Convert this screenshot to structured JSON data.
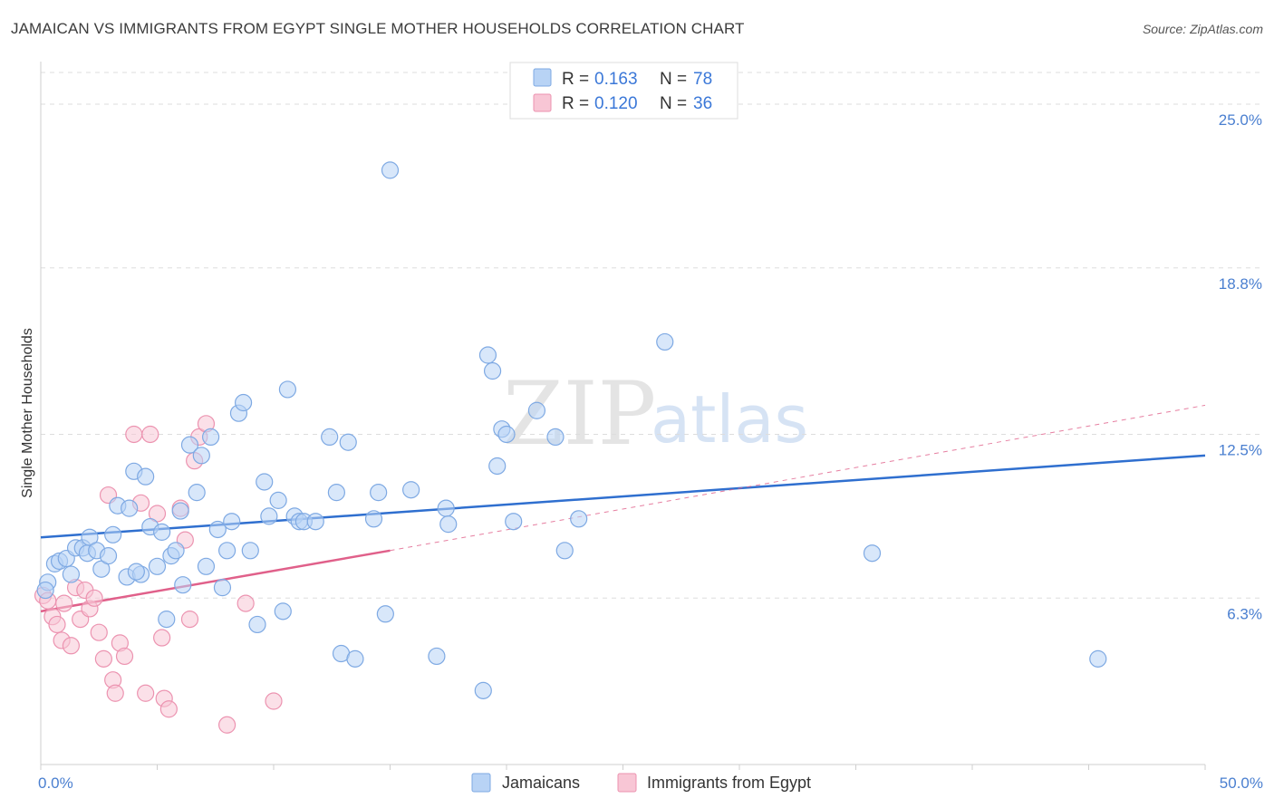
{
  "title": "JAMAICAN VS IMMIGRANTS FROM EGYPT SINGLE MOTHER HOUSEHOLDS CORRELATION CHART",
  "source": "Source: ZipAtlas.com",
  "watermark": {
    "zip": "ZIP",
    "atlas": "atlas"
  },
  "colors": {
    "jamaicans_fill": "#b8d3f5",
    "jamaicans_stroke": "#7ea9e3",
    "jamaicans_line": "#2f6fcf",
    "egypt_fill": "#f8c6d5",
    "egypt_stroke": "#ec93b0",
    "egypt_line": "#e0608a",
    "grid": "#dddddd",
    "tick_text": "#4a7fd0"
  },
  "legend": {
    "rows": [
      {
        "r_label": "R = ",
        "r_value": "0.163",
        "n_label": "N = ",
        "n_value": "78"
      },
      {
        "r_label": "R = ",
        "r_value": "0.120",
        "n_label": "N = ",
        "n_value": "36"
      }
    ]
  },
  "chart_data": {
    "type": "scatter",
    "title": "JAMAICAN VS IMMIGRANTS FROM EGYPT SINGLE MOTHER HOUSEHOLDS CORRELATION CHART",
    "xlabel": "",
    "ylabel": "Single Mother Households",
    "xlim": [
      0,
      50
    ],
    "ylim": [
      0,
      26.2
    ],
    "x_tick_labels": [
      "0.0%",
      "50.0%"
    ],
    "y_ticks": [
      6.3,
      12.5,
      18.8,
      25.0
    ],
    "y_tick_labels": [
      "6.3%",
      "12.5%",
      "18.8%",
      "25.0%"
    ],
    "legend_position": "top-center",
    "series": [
      {
        "name": "Jamaicans",
        "r": 0.163,
        "n": 78,
        "trend": {
          "x": [
            0,
            50
          ],
          "y": [
            8.6,
            11.7
          ],
          "extrapolated": false
        },
        "points": [
          [
            0.3,
            6.9
          ],
          [
            0.6,
            7.6
          ],
          [
            0.8,
            7.7
          ],
          [
            1.1,
            7.8
          ],
          [
            1.3,
            7.2
          ],
          [
            1.5,
            8.2
          ],
          [
            1.8,
            8.2
          ],
          [
            2.0,
            8.0
          ],
          [
            2.1,
            8.6
          ],
          [
            2.4,
            8.1
          ],
          [
            2.6,
            7.4
          ],
          [
            2.9,
            7.9
          ],
          [
            3.1,
            8.7
          ],
          [
            3.3,
            9.8
          ],
          [
            3.7,
            7.1
          ],
          [
            3.8,
            9.7
          ],
          [
            4.0,
            11.1
          ],
          [
            4.3,
            7.2
          ],
          [
            4.5,
            10.9
          ],
          [
            4.7,
            9.0
          ],
          [
            5.0,
            7.5
          ],
          [
            5.2,
            8.8
          ],
          [
            5.4,
            5.5
          ],
          [
            5.6,
            7.9
          ],
          [
            5.8,
            8.1
          ],
          [
            6.0,
            9.6
          ],
          [
            6.1,
            6.8
          ],
          [
            6.4,
            12.1
          ],
          [
            6.7,
            10.3
          ],
          [
            6.9,
            11.7
          ],
          [
            7.1,
            7.5
          ],
          [
            7.3,
            12.4
          ],
          [
            7.6,
            8.9
          ],
          [
            7.8,
            6.7
          ],
          [
            8.0,
            8.1
          ],
          [
            8.2,
            9.2
          ],
          [
            8.5,
            13.3
          ],
          [
            8.7,
            13.7
          ],
          [
            9.0,
            8.1
          ],
          [
            9.3,
            5.3
          ],
          [
            9.6,
            10.7
          ],
          [
            9.8,
            9.4
          ],
          [
            10.2,
            10.0
          ],
          [
            10.4,
            5.8
          ],
          [
            10.6,
            14.2
          ],
          [
            10.9,
            9.4
          ],
          [
            11.1,
            9.2
          ],
          [
            11.3,
            9.2
          ],
          [
            11.8,
            9.2
          ],
          [
            12.4,
            12.4
          ],
          [
            12.7,
            10.3
          ],
          [
            12.9,
            4.2
          ],
          [
            13.2,
            12.2
          ],
          [
            13.5,
            4.0
          ],
          [
            14.3,
            9.3
          ],
          [
            14.5,
            10.3
          ],
          [
            14.8,
            5.7
          ],
          [
            15.0,
            22.5
          ],
          [
            15.9,
            10.4
          ],
          [
            17.0,
            4.1
          ],
          [
            17.4,
            9.7
          ],
          [
            17.5,
            9.1
          ],
          [
            19.0,
            2.8
          ],
          [
            19.2,
            15.5
          ],
          [
            19.4,
            14.9
          ],
          [
            19.6,
            11.3
          ],
          [
            19.8,
            12.7
          ],
          [
            20.0,
            12.5
          ],
          [
            20.3,
            9.2
          ],
          [
            21.3,
            13.4
          ],
          [
            22.1,
            12.4
          ],
          [
            22.5,
            8.1
          ],
          [
            23.1,
            9.3
          ],
          [
            26.8,
            16.0
          ],
          [
            35.7,
            8.0
          ],
          [
            45.4,
            4.0
          ],
          [
            0.2,
            6.6
          ],
          [
            4.1,
            7.3
          ]
        ]
      },
      {
        "name": "Immigrants from Egypt",
        "r": 0.12,
        "n": 36,
        "trend": {
          "x": [
            0,
            15
          ],
          "y": [
            5.8,
            8.1
          ],
          "extrapolated_to": [
            50,
            13.6
          ]
        },
        "points": [
          [
            0.1,
            6.4
          ],
          [
            0.3,
            6.2
          ],
          [
            0.5,
            5.6
          ],
          [
            0.7,
            5.3
          ],
          [
            0.9,
            4.7
          ],
          [
            1.0,
            6.1
          ],
          [
            1.3,
            4.5
          ],
          [
            1.5,
            6.7
          ],
          [
            1.7,
            5.5
          ],
          [
            1.9,
            6.6
          ],
          [
            2.1,
            5.9
          ],
          [
            2.3,
            6.3
          ],
          [
            2.5,
            5.0
          ],
          [
            2.7,
            4.0
          ],
          [
            2.9,
            10.2
          ],
          [
            3.1,
            3.2
          ],
          [
            3.2,
            2.7
          ],
          [
            3.4,
            4.6
          ],
          [
            3.6,
            4.1
          ],
          [
            4.0,
            12.5
          ],
          [
            4.3,
            9.9
          ],
          [
            4.5,
            2.7
          ],
          [
            4.7,
            12.5
          ],
          [
            5.0,
            9.5
          ],
          [
            5.2,
            4.8
          ],
          [
            5.3,
            2.5
          ],
          [
            5.5,
            2.1
          ],
          [
            6.0,
            9.7
          ],
          [
            6.2,
            8.5
          ],
          [
            6.4,
            5.5
          ],
          [
            6.6,
            11.5
          ],
          [
            6.8,
            12.4
          ],
          [
            7.1,
            12.9
          ],
          [
            8.0,
            1.5
          ],
          [
            8.8,
            6.1
          ],
          [
            10.0,
            2.4
          ]
        ]
      }
    ]
  },
  "bottom_legend": {
    "items": [
      {
        "label": "Jamaicans"
      },
      {
        "label": "Immigrants from Egypt"
      }
    ]
  }
}
